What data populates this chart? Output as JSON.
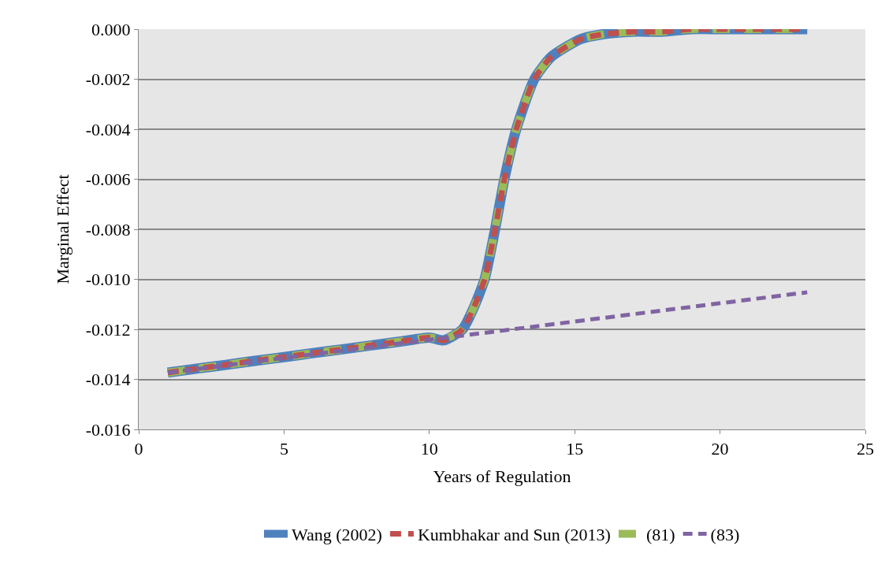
{
  "chart_data": {
    "type": "line",
    "xlabel": "Years of Regulation",
    "ylabel": "Marginal Effect",
    "x": [
      1,
      2,
      3,
      4,
      5,
      6,
      7,
      8,
      9,
      10,
      10.5,
      11.14,
      11.5,
      11.9,
      12.26,
      12.58,
      12.99,
      13.61,
      14.2,
      15.2,
      16,
      17,
      18,
      19,
      20,
      21,
      22,
      23
    ],
    "series": [
      {
        "name": "Wang (2002)",
        "color": "#4f81bd",
        "line_style": "solid",
        "values": [
          -0.01373,
          -0.01357,
          -0.01342,
          -0.01326,
          -0.01311,
          -0.01295,
          -0.0128,
          -0.01264,
          -0.01249,
          -0.01233,
          -0.01244,
          -0.012,
          -0.0112,
          -0.01,
          -0.008,
          -0.006,
          -0.004,
          -0.002,
          -0.0011,
          -0.0004,
          -0.0002,
          -0.0001,
          -0.0001,
          0,
          0,
          0,
          0,
          0
        ]
      },
      {
        "name": "Kumbhakar and Sun (2013)",
        "color": "#c0504d",
        "line_style": "dashed",
        "values": [
          -0.01373,
          -0.01357,
          -0.01342,
          -0.01326,
          -0.01311,
          -0.01295,
          -0.0128,
          -0.01264,
          -0.01249,
          -0.01233,
          -0.01244,
          -0.012,
          -0.0112,
          -0.01,
          -0.008,
          -0.006,
          -0.004,
          -0.002,
          -0.0011,
          -0.0004,
          -0.0002,
          -0.0001,
          -0.0001,
          0,
          0,
          0,
          0,
          0
        ]
      },
      {
        "name": "(81)",
        "color": "#9bbb59",
        "line_style": "dashed",
        "values": [
          -0.01373,
          -0.01357,
          -0.01342,
          -0.01326,
          -0.01311,
          -0.01295,
          -0.0128,
          -0.01264,
          -0.01249,
          -0.01233,
          -0.0124,
          -0.012,
          -0.0112,
          -0.01,
          -0.008,
          -0.006,
          -0.004,
          -0.002,
          -0.0011,
          -0.0004,
          -0.0002,
          -0.0001,
          -0.0001,
          0,
          0,
          0,
          0,
          0
        ]
      },
      {
        "name": "(83)",
        "color": "#8064a2",
        "line_style": "dashed",
        "x": [
          1,
          23
        ],
        "values": [
          -0.01373,
          -0.01052
        ]
      }
    ],
    "xlim": [
      0,
      25
    ],
    "xticks": [
      0,
      5,
      10,
      15,
      20,
      25
    ],
    "ylim": [
      -0.016,
      0
    ],
    "yticks": [
      {
        "value": -0.016,
        "label": "-0.016"
      },
      {
        "value": -0.014,
        "label": "-0.014"
      },
      {
        "value": -0.012,
        "label": "-0.012"
      },
      {
        "value": -0.01,
        "label": "-0.010"
      },
      {
        "value": -0.008,
        "label": "-0.008"
      },
      {
        "value": -0.006,
        "label": "-0.006"
      },
      {
        "value": -0.004,
        "label": "-0.004"
      },
      {
        "value": -0.002,
        "label": "-0.002"
      },
      {
        "value": 0,
        "label": "0.000"
      }
    ],
    "grid": "y",
    "legend": "bottom",
    "marker": "none"
  }
}
